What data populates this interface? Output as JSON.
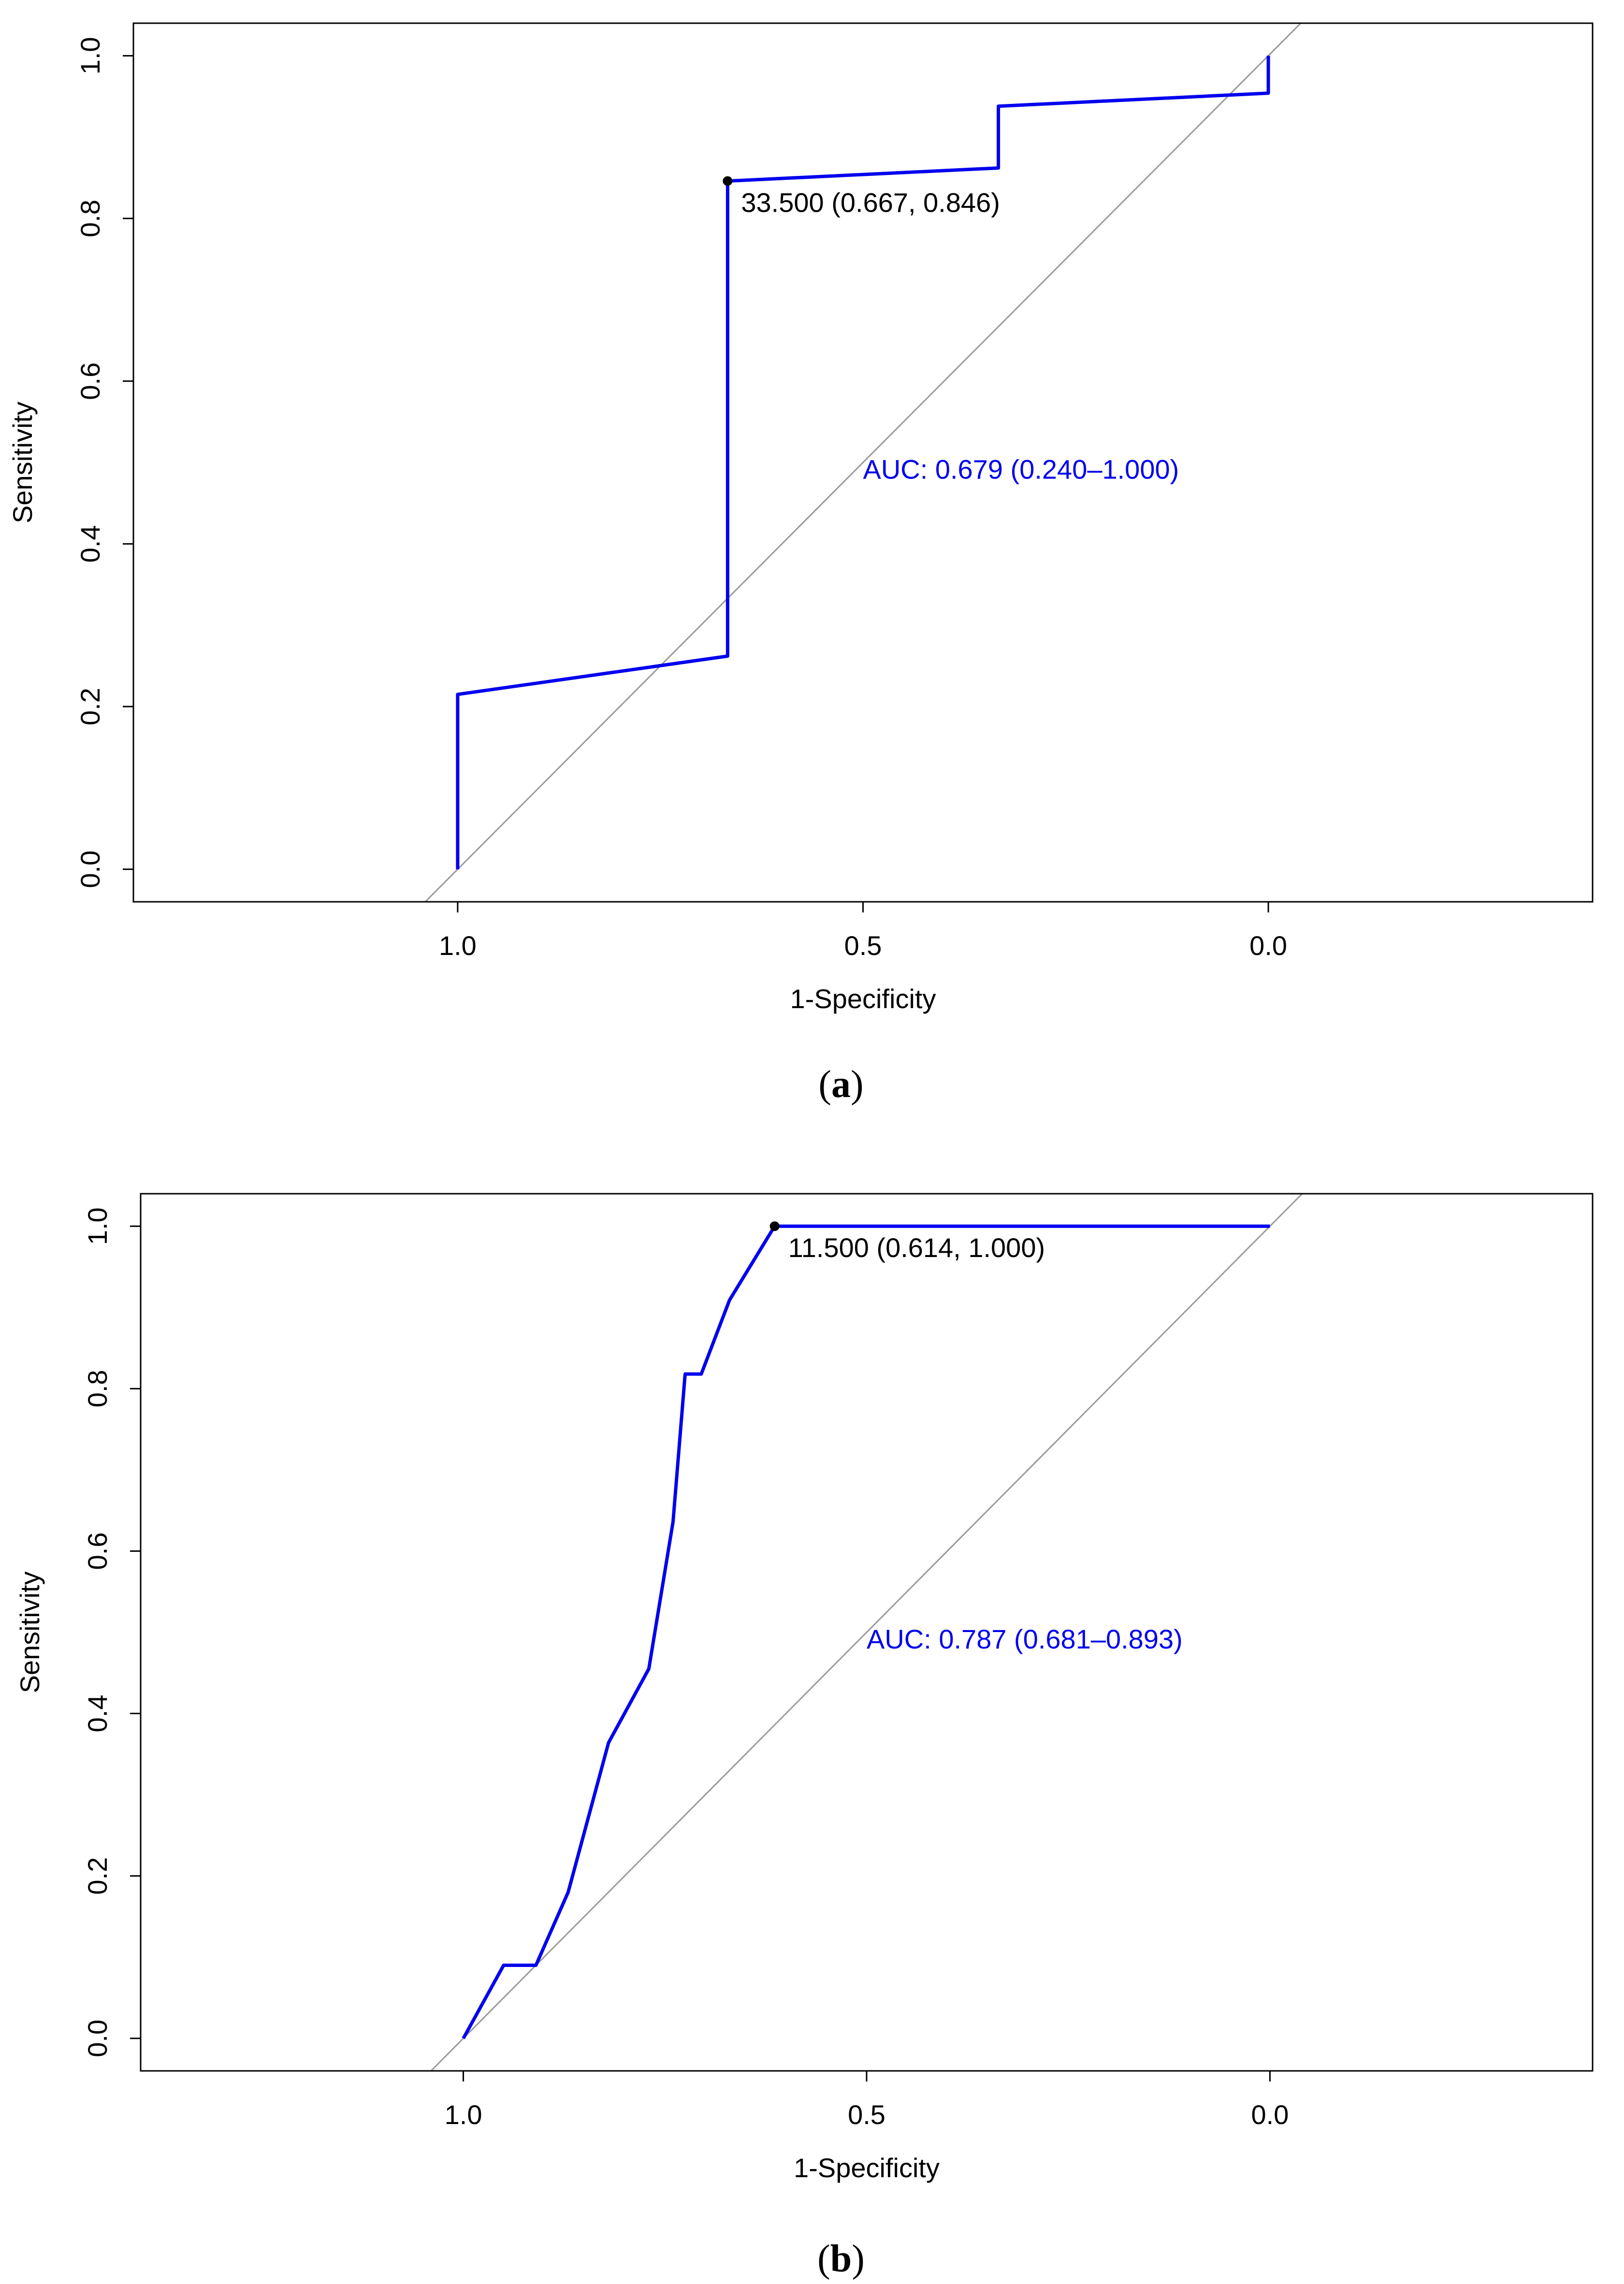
{
  "chart_data": [
    {
      "id": "a",
      "type": "line",
      "subtype": "roc",
      "caption": {
        "open": "(",
        "letter": "a",
        "close": ")"
      },
      "xlabel": "1-Specificity",
      "ylabel": "Sensitivity",
      "xlim": [
        1.4,
        -0.4
      ],
      "ylim": [
        0,
        1
      ],
      "xticks": [
        1.0,
        0.5,
        0.0
      ],
      "xtick_labels": [
        "1.0",
        "0.5",
        "0.0"
      ],
      "yticks": [
        0.0,
        0.2,
        0.4,
        0.6,
        0.8,
        1.0
      ],
      "ytick_labels": [
        "0.0",
        "0.2",
        "0.4",
        "0.6",
        "0.8",
        "1.0"
      ],
      "curve_color": "#0000ee",
      "diagonal_color": "#9a9a9a",
      "series": [
        {
          "name": "ROC",
          "x": [
            1.0,
            1.0,
            0.667,
            0.667,
            0.667,
            0.333,
            0.333,
            0.0,
            0.0
          ],
          "y": [
            0.0,
            0.215,
            0.262,
            0.846,
            0.846,
            0.862,
            0.938,
            0.954,
            1.0
          ]
        }
      ],
      "threshold_point": {
        "x": 0.667,
        "y": 0.846,
        "label": "33.500 (0.667, 0.846)"
      },
      "auc_label": "AUC: 0.679 (0.240–1.000)",
      "auc_label_pos": {
        "x": 0.5,
        "y": 0.48
      }
    },
    {
      "id": "b",
      "type": "line",
      "subtype": "roc",
      "caption": {
        "open": "(",
        "letter": "b",
        "close": ")"
      },
      "xlabel": "1-Specificity",
      "ylabel": "Sensitivity",
      "xlim": [
        1.4,
        -0.4
      ],
      "ylim": [
        0,
        1
      ],
      "xticks": [
        1.0,
        0.5,
        0.0
      ],
      "xtick_labels": [
        "1.0",
        "0.5",
        "0.0"
      ],
      "yticks": [
        0.0,
        0.2,
        0.4,
        0.6,
        0.8,
        1.0
      ],
      "ytick_labels": [
        "0.0",
        "0.2",
        "0.4",
        "0.6",
        "0.8",
        "1.0"
      ],
      "curve_color": "#0000ee",
      "diagonal_color": "#9a9a9a",
      "series": [
        {
          "name": "ROC",
          "x": [
            1.0,
            0.95,
            0.91,
            0.87,
            0.82,
            0.77,
            0.74,
            0.725,
            0.705,
            0.67,
            0.614,
            0.0
          ],
          "y": [
            0.0,
            0.09,
            0.09,
            0.18,
            0.364,
            0.455,
            0.636,
            0.818,
            0.818,
            0.909,
            1.0,
            1.0
          ]
        }
      ],
      "threshold_point": {
        "x": 0.614,
        "y": 1.0,
        "label": "11.500 (0.614, 1.000)"
      },
      "auc_label": "AUC: 0.787 (0.681–0.893)",
      "auc_label_pos": {
        "x": 0.5,
        "y": 0.48
      }
    }
  ]
}
